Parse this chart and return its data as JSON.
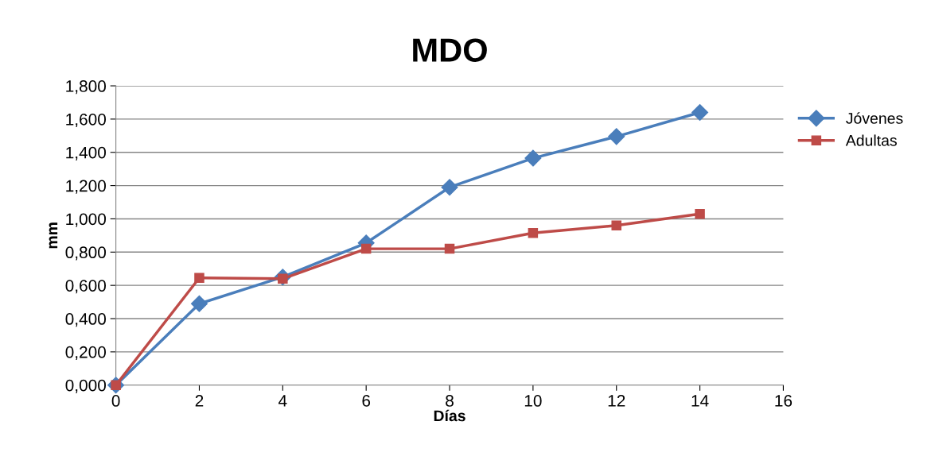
{
  "chart_data": {
    "type": "line",
    "title": "MDO",
    "xlabel": "Días",
    "ylabel": "mm",
    "x": [
      0,
      2,
      4,
      6,
      8,
      10,
      12,
      14
    ],
    "series": [
      {
        "name": "Jóvenes",
        "color": "#4a7ebb",
        "marker": "diamond",
        "values": [
          0.0,
          0.49,
          0.65,
          0.855,
          1.19,
          1.365,
          1.495,
          1.64
        ]
      },
      {
        "name": "Adultas",
        "color": "#be4b48",
        "marker": "square",
        "values": [
          0.0,
          0.645,
          0.64,
          0.82,
          0.82,
          0.915,
          0.96,
          1.03
        ]
      }
    ],
    "xlim": [
      0,
      16
    ],
    "xticks": [
      0,
      2,
      4,
      6,
      8,
      10,
      12,
      14,
      16
    ],
    "ylim": [
      0,
      1.8
    ],
    "yticks": [
      {
        "value": 0,
        "label": "0,000"
      },
      {
        "value": 0.2,
        "label": "0,200"
      },
      {
        "value": 0.4,
        "label": "0,400"
      },
      {
        "value": 0.6,
        "label": "0,600"
      },
      {
        "value": 0.8,
        "label": "0,800"
      },
      {
        "value": 1.0,
        "label": "1,000"
      },
      {
        "value": 1.2,
        "label": "1,200"
      },
      {
        "value": 1.4,
        "label": "1,400"
      },
      {
        "value": 1.6,
        "label": "1,600"
      },
      {
        "value": 1.8,
        "label": "1,800"
      }
    ],
    "grid": "y",
    "legend": "right",
    "line_style": "solid"
  }
}
